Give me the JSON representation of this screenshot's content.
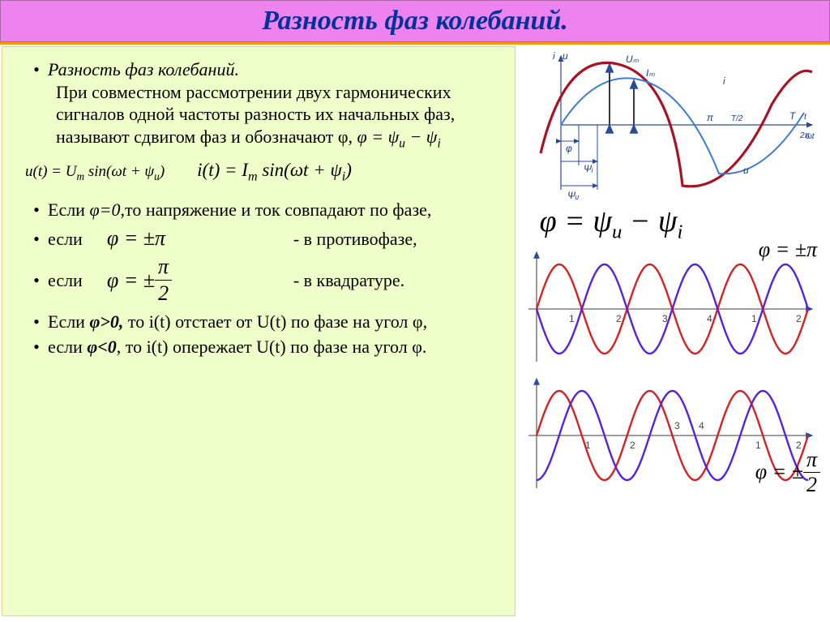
{
  "title": "Разность фаз колебаний.",
  "intro_heading": "Разность фаз колебаний.",
  "intro_body": "При совместном рассмотрении двух гармонических сигналов одной частоты разность их начальных фаз, называют сдвигом фаз и обозначают φ, ",
  "phi_def": "φ = ψ",
  "phi_def_u": "u",
  "phi_def_minus": " − ψ",
  "phi_def_i": "i",
  "u_eq": "u(t) = U",
  "u_eq_sub": "m",
  "u_eq_rest": " sin(ωt + ψ",
  "u_eq_sub2": "u",
  "u_eq_close": ")",
  "i_eq": "i(t) = I",
  "i_eq_sub": "m",
  "i_eq_rest": " sin(ωt + ψ",
  "i_eq_sub2": "i",
  "i_eq_close": ")",
  "case1": "Если φ=0,то напряжение и ток совпадают по фазе,",
  "case2_pre": "если",
  "case2_math": "φ = ±π",
  "case2_post": "- в противофазе,",
  "case3_pre": "если",
  "case3_math_pre": "φ = ± ",
  "case3_num": "π",
  "case3_den": "2",
  "case3_post": "- в квадратуре.",
  "case4_pre": "Если ",
  "case4_bold": "φ>0,",
  "case4_rest": " то i(t) отстает от U(t) по фазе на угол φ,",
  "case5_pre": "если ",
  "case5_bold": "φ<0",
  "case5_rest": ", то i(t) опережает U(t) по фазе на угол φ.",
  "right_phi": "φ = ψ",
  "right_phi_u": "u",
  "right_phi_minus": " − ψ",
  "right_phi_i": "i",
  "right_antiphase_label": "φ = ±π",
  "right_quad_pre": "φ = ± ",
  "right_quad_num": "π",
  "right_quad_den": "2",
  "chart1": {
    "type": "line",
    "colors": {
      "u": "#a81224",
      "i": "#3b7bd6",
      "axis": "#2a4a9a"
    },
    "labels": {
      "Um": "Uₘ",
      "Im": "Iₘ",
      "i": "i",
      "u": "u",
      "phi": "φ",
      "psi_i": "Ψᵢ",
      "psi_u": "Ψᵤ",
      "pi": "π",
      "two_pi": "2π",
      "T": "T",
      "T2": "T/2",
      "t": "t",
      "wt": "ωt"
    },
    "ylim": [
      -1,
      1
    ],
    "xlim": [
      0,
      6.6
    ]
  },
  "chart2": {
    "type": "line",
    "colors": {
      "a": "#d42222",
      "b": "#5522dd",
      "axis": "#666"
    },
    "phase_shift": 3.1416,
    "xticks": [
      "1",
      "2",
      "3",
      "4",
      "1",
      "2"
    ],
    "ylim": [
      -1,
      1
    ],
    "xlim": [
      0,
      6.8
    ]
  },
  "chart3": {
    "type": "line",
    "colors": {
      "a": "#d42222",
      "b": "#5522dd",
      "axis": "#666"
    },
    "phase_shift": 1.5708,
    "xticks": [
      "1",
      "2",
      "3",
      "4",
      "1",
      "2"
    ],
    "ylim": [
      -1,
      1
    ],
    "xlim": [
      0,
      7.4
    ]
  }
}
